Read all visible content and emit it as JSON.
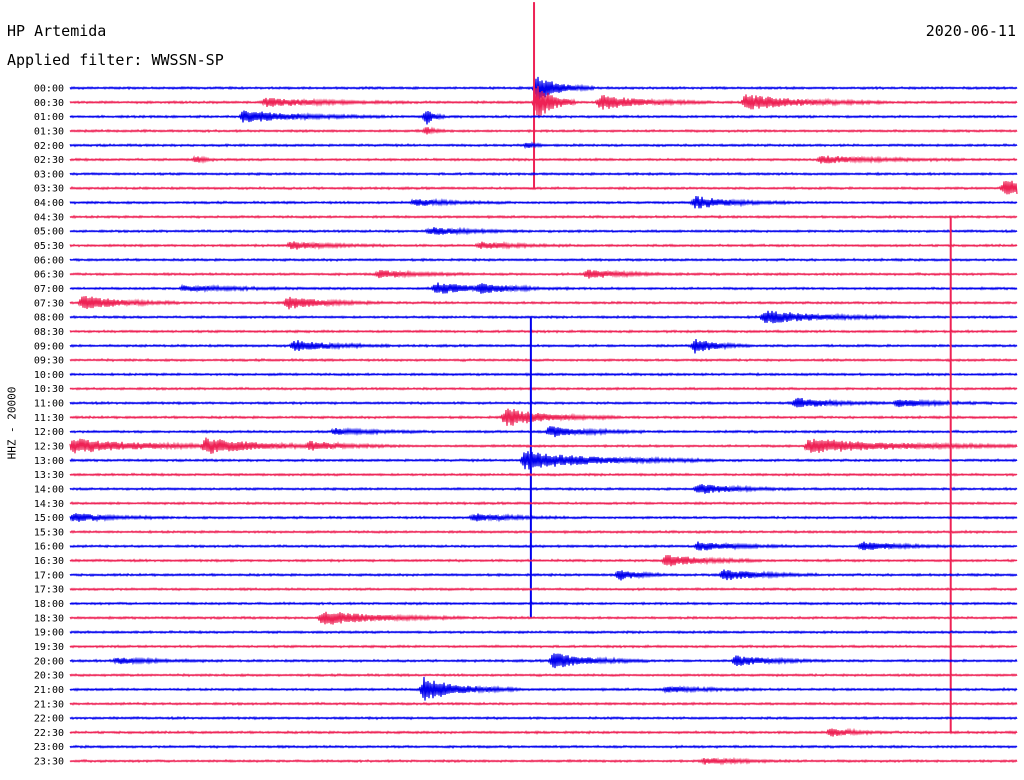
{
  "header": {
    "station": "HP Artemida",
    "filter": "Applied filter: WWSSN-SP",
    "date": "2020-06-11"
  },
  "channel_label": "HHZ - 20000",
  "colors": {
    "blue": "#0000ee",
    "red": "#ee2255"
  },
  "chart_data": {
    "type": "line",
    "title": "HP Artemida",
    "subtitle": "Applied filter: WWSSN-SP",
    "date": "2020-06-11",
    "ylabel": "HHZ - 20000",
    "x_unit": "minutes",
    "xlim": [
      0,
      30
    ],
    "grid": false,
    "legend": "none",
    "row_colors": [
      "blue",
      "red"
    ],
    "rows": [
      "00:00",
      "00:30",
      "01:00",
      "01:30",
      "02:00",
      "02:30",
      "03:00",
      "03:30",
      "04:00",
      "04:30",
      "05:00",
      "05:30",
      "06:00",
      "06:30",
      "07:00",
      "07:30",
      "08:00",
      "08:30",
      "09:00",
      "09:30",
      "10:00",
      "10:30",
      "11:00",
      "11:30",
      "12:00",
      "12:30",
      "13:00",
      "13:30",
      "14:00",
      "14:30",
      "15:00",
      "15:30",
      "16:00",
      "16:30",
      "17:00",
      "17:30",
      "18:00",
      "18:30",
      "19:00",
      "19:30",
      "20:00",
      "20:30",
      "21:00",
      "21:30",
      "22:00",
      "22:30",
      "23:00",
      "23:30"
    ],
    "events": [
      {
        "row": 0,
        "t": 14.8,
        "amp": 2.2,
        "dur": 0.6
      },
      {
        "row": 1,
        "t": 6.2,
        "amp": 0.7,
        "dur": 1.5
      },
      {
        "row": 1,
        "t": 14.8,
        "amp": 4.0,
        "dur": 0.4
      },
      {
        "row": 1,
        "t": 16.8,
        "amp": 1.2,
        "dur": 1.2
      },
      {
        "row": 1,
        "t": 21.4,
        "amp": 1.3,
        "dur": 1.5
      },
      {
        "row": 2,
        "t": 5.5,
        "amp": 1.0,
        "dur": 1.5
      },
      {
        "row": 2,
        "t": 11.3,
        "amp": 1.3,
        "dur": 0.2
      },
      {
        "row": 3,
        "t": 11.3,
        "amp": 0.6,
        "dur": 0.2
      },
      {
        "row": 4,
        "t": 14.5,
        "amp": 0.5,
        "dur": 0.2
      },
      {
        "row": 5,
        "t": 4.0,
        "amp": 0.6,
        "dur": 0.2
      },
      {
        "row": 5,
        "t": 23.8,
        "amp": 0.6,
        "dur": 1.5
      },
      {
        "row": 7,
        "t": 29.6,
        "amp": 1.3,
        "dur": 1.5
      },
      {
        "row": 8,
        "t": 10.9,
        "amp": 0.5,
        "dur": 1.0
      },
      {
        "row": 8,
        "t": 19.8,
        "amp": 1.0,
        "dur": 1.0
      },
      {
        "row": 10,
        "t": 11.4,
        "amp": 0.6,
        "dur": 1.0
      },
      {
        "row": 11,
        "t": 7.0,
        "amp": 0.6,
        "dur": 1.0
      },
      {
        "row": 11,
        "t": 13.0,
        "amp": 0.5,
        "dur": 1.0
      },
      {
        "row": 13,
        "t": 9.8,
        "amp": 0.6,
        "dur": 1.0
      },
      {
        "row": 13,
        "t": 16.4,
        "amp": 0.7,
        "dur": 1.0
      },
      {
        "row": 14,
        "t": 3.6,
        "amp": 0.4,
        "dur": 1.5
      },
      {
        "row": 14,
        "t": 11.6,
        "amp": 1.0,
        "dur": 1.0
      },
      {
        "row": 14,
        "t": 13.0,
        "amp": 0.6,
        "dur": 1.0
      },
      {
        "row": 15,
        "t": 0.4,
        "amp": 1.2,
        "dur": 1.0
      },
      {
        "row": 15,
        "t": 6.9,
        "amp": 1.0,
        "dur": 1.0
      },
      {
        "row": 16,
        "t": 22.0,
        "amp": 1.1,
        "dur": 1.5
      },
      {
        "row": 18,
        "t": 7.1,
        "amp": 0.9,
        "dur": 1.0
      },
      {
        "row": 18,
        "t": 19.8,
        "amp": 1.2,
        "dur": 0.6
      },
      {
        "row": 22,
        "t": 23.0,
        "amp": 0.8,
        "dur": 1.0
      },
      {
        "row": 22,
        "t": 26.2,
        "amp": 0.6,
        "dur": 1.0
      },
      {
        "row": 23,
        "t": 13.8,
        "amp": 1.5,
        "dur": 1.2
      },
      {
        "row": 24,
        "t": 8.4,
        "amp": 0.5,
        "dur": 1.0
      },
      {
        "row": 24,
        "t": 15.2,
        "amp": 0.9,
        "dur": 1.0
      },
      {
        "row": 25,
        "t": 0.1,
        "amp": 1.2,
        "dur": 2.0
      },
      {
        "row": 25,
        "t": 4.3,
        "amp": 1.2,
        "dur": 1.5
      },
      {
        "row": 25,
        "t": 7.6,
        "amp": 0.6,
        "dur": 1.0
      },
      {
        "row": 25,
        "t": 23.4,
        "amp": 1.2,
        "dur": 2.5
      },
      {
        "row": 26,
        "t": 14.4,
        "amp": 1.5,
        "dur": 2.0
      },
      {
        "row": 28,
        "t": 19.9,
        "amp": 0.8,
        "dur": 1.0
      },
      {
        "row": 30,
        "t": 0.1,
        "amp": 0.7,
        "dur": 1.0
      },
      {
        "row": 30,
        "t": 12.8,
        "amp": 0.6,
        "dur": 1.0
      },
      {
        "row": 32,
        "t": 19.9,
        "amp": 0.7,
        "dur": 1.0
      },
      {
        "row": 32,
        "t": 25.1,
        "amp": 0.7,
        "dur": 1.0
      },
      {
        "row": 33,
        "t": 18.9,
        "amp": 1.0,
        "dur": 1.0
      },
      {
        "row": 34,
        "t": 17.4,
        "amp": 1.0,
        "dur": 0.5
      },
      {
        "row": 34,
        "t": 20.7,
        "amp": 0.9,
        "dur": 1.0
      },
      {
        "row": 37,
        "t": 8.0,
        "amp": 1.2,
        "dur": 1.5
      },
      {
        "row": 40,
        "t": 1.5,
        "amp": 0.5,
        "dur": 1.0
      },
      {
        "row": 40,
        "t": 15.3,
        "amp": 1.3,
        "dur": 1.0
      },
      {
        "row": 40,
        "t": 21.1,
        "amp": 0.8,
        "dur": 1.0
      },
      {
        "row": 42,
        "t": 11.2,
        "amp": 2.0,
        "dur": 1.0
      },
      {
        "row": 42,
        "t": 18.9,
        "amp": 0.4,
        "dur": 1.0
      },
      {
        "row": 45,
        "t": 24.1,
        "amp": 0.7,
        "dur": 0.6
      },
      {
        "row": 47,
        "t": 20.1,
        "amp": 0.5,
        "dur": 1.0
      }
    ],
    "spikes": [
      {
        "row": 1,
        "t": 14.7,
        "up": 7.0,
        "down": 6.0
      },
      {
        "row": 24,
        "t": 14.6,
        "up": 8.0,
        "down": 13.0
      },
      {
        "row": 29,
        "t": 27.9,
        "up": 20.0,
        "down": 16.0
      }
    ]
  }
}
